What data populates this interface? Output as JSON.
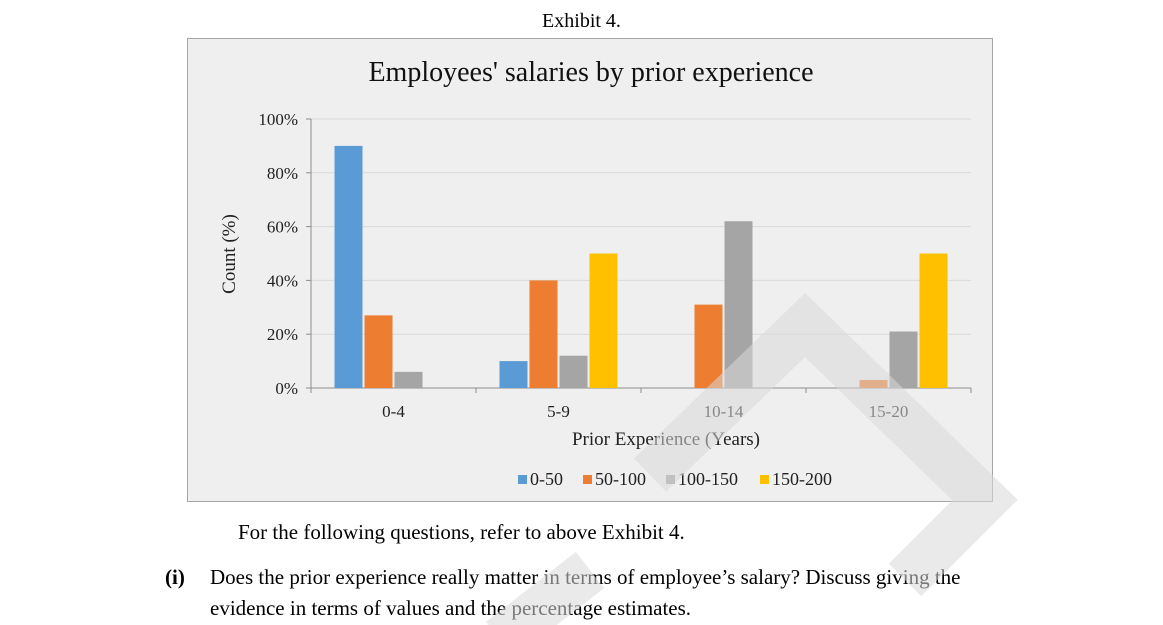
{
  "exhibit_label": "Exhibit 4.",
  "chart_data": {
    "type": "bar",
    "title": "Employees' salaries by prior experience",
    "xlabel": "Prior Experience (Years)",
    "ylabel": "Count (%)",
    "categories": [
      "0-4",
      "5-9",
      "10-14",
      "15-20"
    ],
    "ylim": [
      0,
      100
    ],
    "yticks": [
      0,
      20,
      40,
      60,
      80,
      100
    ],
    "ytick_labels": [
      "0%",
      "20%",
      "40%",
      "60%",
      "80%",
      "100%"
    ],
    "legend_position": "bottom",
    "grid": true,
    "series": [
      {
        "name": "0-50",
        "color": "#5b9bd5",
        "values": [
          90,
          10,
          0,
          0
        ]
      },
      {
        "name": "50-100",
        "color": "#ed7d31",
        "values": [
          27,
          40,
          31,
          3
        ]
      },
      {
        "name": "100-150",
        "color": "#a5a5a5",
        "values": [
          6,
          12,
          62,
          21
        ]
      },
      {
        "name": "150-200",
        "color": "#ffc000",
        "values": [
          0,
          50,
          0,
          50
        ]
      }
    ]
  },
  "text": {
    "intro": "For the following questions, refer to above Exhibit 4.",
    "question_number": "(i)",
    "question_line1": "Does the prior experience really matter in terms of employee’s salary? Discuss giving the",
    "question_line2": "evidence in terms of values and the percentage estimates."
  }
}
